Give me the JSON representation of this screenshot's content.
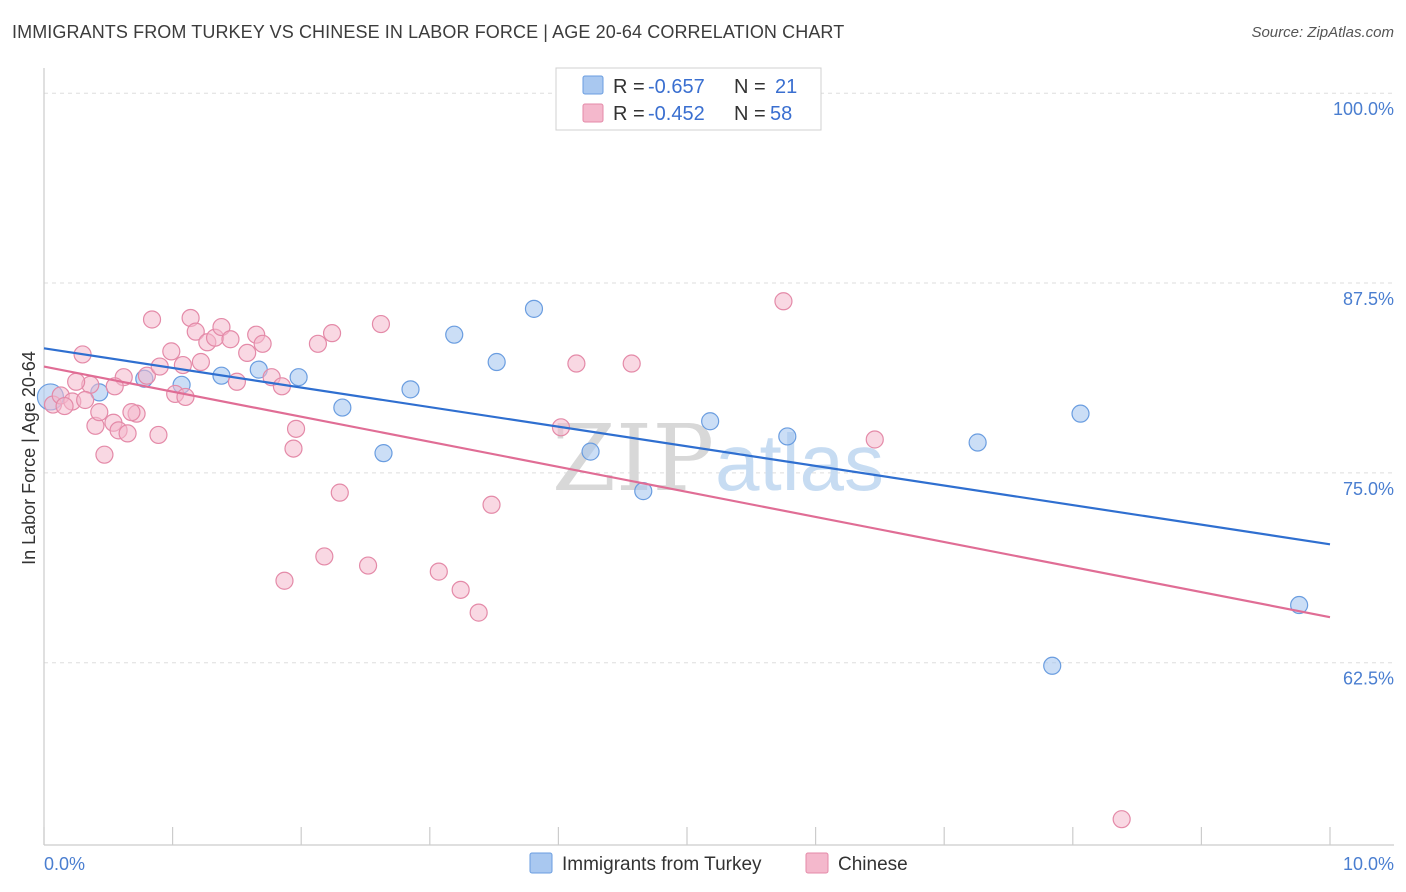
{
  "title": "IMMIGRANTS FROM TURKEY VS CHINESE IN LABOR FORCE | AGE 20-64 CORRELATION CHART",
  "source": "Source: ZipAtlas.com",
  "watermark": {
    "part1": "ZIP",
    "part2": "atlas"
  },
  "colors": {
    "turkey_fill": "#a9c8f0",
    "turkey_line": "#2f6fd0",
    "chinese_fill": "#f4b8cc",
    "chinese_line": "#e06d95",
    "tick": "#4a7ed0"
  },
  "legend": {
    "r_label": "R =",
    "n_label": "N =",
    "rows": [
      {
        "r": "-0.657",
        "n": "21"
      },
      {
        "r": "-0.452",
        "n": "58"
      }
    ]
  },
  "chart_data": {
    "type": "scatter",
    "title": "IMMIGRANTS FROM TURKEY VS CHINESE IN LABOR FORCE | AGE 20-64 CORRELATION CHART",
    "xlabel": "",
    "ylabel": "In Labor Force | Age 20-64",
    "xlim": [
      0,
      10
    ],
    "ylim": [
      50.5,
      101
    ],
    "x_tick_labels": [
      "0.0%",
      "10.0%"
    ],
    "y_ticks": [
      62.5,
      75.0,
      87.5,
      100.0
    ],
    "y_tick_labels": [
      "62.5%",
      "75.0%",
      "87.5%",
      "100.0%"
    ],
    "series": [
      {
        "name": "Immigrants from Turkey",
        "r": -0.657,
        "n": 21,
        "trend": {
          "x": [
            0,
            10
          ],
          "y": [
            83.2,
            70.3
          ]
        },
        "points": [
          {
            "x": 0.05,
            "y": 80.0
          },
          {
            "x": 0.43,
            "y": 80.3
          },
          {
            "x": 0.78,
            "y": 81.2
          },
          {
            "x": 1.07,
            "y": 80.8
          },
          {
            "x": 1.38,
            "y": 81.4
          },
          {
            "x": 1.67,
            "y": 81.8
          },
          {
            "x": 1.98,
            "y": 81.3
          },
          {
            "x": 2.32,
            "y": 79.3
          },
          {
            "x": 2.64,
            "y": 76.3
          },
          {
            "x": 3.19,
            "y": 84.1
          },
          {
            "x": 2.85,
            "y": 80.5
          },
          {
            "x": 3.52,
            "y": 82.3
          },
          {
            "x": 3.81,
            "y": 85.8
          },
          {
            "x": 4.25,
            "y": 76.4
          },
          {
            "x": 4.66,
            "y": 73.8
          },
          {
            "x": 5.18,
            "y": 78.4
          },
          {
            "x": 5.78,
            "y": 77.4
          },
          {
            "x": 7.26,
            "y": 77.0
          },
          {
            "x": 8.06,
            "y": 78.9
          },
          {
            "x": 7.84,
            "y": 62.3
          },
          {
            "x": 9.76,
            "y": 66.3
          }
        ]
      },
      {
        "name": "Chinese",
        "r": -0.452,
        "n": 58,
        "trend": {
          "x": [
            0,
            10
          ],
          "y": [
            82.0,
            65.5
          ]
        },
        "points": [
          {
            "x": 0.07,
            "y": 79.5
          },
          {
            "x": 0.13,
            "y": 80.1
          },
          {
            "x": 0.22,
            "y": 79.7
          },
          {
            "x": 0.3,
            "y": 82.8
          },
          {
            "x": 0.36,
            "y": 80.8
          },
          {
            "x": 0.32,
            "y": 79.8
          },
          {
            "x": 0.4,
            "y": 78.1
          },
          {
            "x": 0.43,
            "y": 79.0
          },
          {
            "x": 0.47,
            "y": 76.2
          },
          {
            "x": 0.54,
            "y": 78.3
          },
          {
            "x": 0.58,
            "y": 77.8
          },
          {
            "x": 0.62,
            "y": 81.3
          },
          {
            "x": 0.65,
            "y": 77.6
          },
          {
            "x": 0.72,
            "y": 78.9
          },
          {
            "x": 0.8,
            "y": 81.4
          },
          {
            "x": 0.84,
            "y": 85.1
          },
          {
            "x": 0.89,
            "y": 77.5
          },
          {
            "x": 0.99,
            "y": 83.0
          },
          {
            "x": 1.02,
            "y": 80.2
          },
          {
            "x": 1.08,
            "y": 82.1
          },
          {
            "x": 1.14,
            "y": 85.2
          },
          {
            "x": 1.18,
            "y": 84.3
          },
          {
            "x": 1.22,
            "y": 82.3
          },
          {
            "x": 1.27,
            "y": 83.6
          },
          {
            "x": 1.33,
            "y": 83.9
          },
          {
            "x": 1.38,
            "y": 84.6
          },
          {
            "x": 1.45,
            "y": 83.8
          },
          {
            "x": 1.58,
            "y": 82.9
          },
          {
            "x": 1.65,
            "y": 84.1
          },
          {
            "x": 1.7,
            "y": 83.5
          },
          {
            "x": 1.77,
            "y": 81.3
          },
          {
            "x": 1.85,
            "y": 80.7
          },
          {
            "x": 1.94,
            "y": 76.6
          },
          {
            "x": 1.96,
            "y": 77.9
          },
          {
            "x": 2.13,
            "y": 83.5
          },
          {
            "x": 2.24,
            "y": 84.2
          },
          {
            "x": 2.3,
            "y": 73.7
          },
          {
            "x": 2.18,
            "y": 69.5
          },
          {
            "x": 1.87,
            "y": 67.9
          },
          {
            "x": 2.52,
            "y": 68.9
          },
          {
            "x": 2.62,
            "y": 84.8
          },
          {
            "x": 3.07,
            "y": 68.5
          },
          {
            "x": 3.24,
            "y": 67.3
          },
          {
            "x": 3.38,
            "y": 65.8
          },
          {
            "x": 3.48,
            "y": 72.9
          },
          {
            "x": 4.02,
            "y": 78.0
          },
          {
            "x": 4.14,
            "y": 82.2
          },
          {
            "x": 4.57,
            "y": 82.2
          },
          {
            "x": 5.75,
            "y": 86.3
          },
          {
            "x": 6.46,
            "y": 77.2
          },
          {
            "x": 8.38,
            "y": 52.2
          },
          {
            "x": 0.9,
            "y": 82.0
          },
          {
            "x": 0.68,
            "y": 79.0
          },
          {
            "x": 1.1,
            "y": 80.0
          },
          {
            "x": 0.25,
            "y": 81.0
          },
          {
            "x": 0.16,
            "y": 79.4
          },
          {
            "x": 0.55,
            "y": 80.7
          },
          {
            "x": 1.5,
            "y": 81.0
          }
        ]
      }
    ]
  },
  "bottom_legend": [
    "Immigrants from Turkey",
    "Chinese"
  ]
}
